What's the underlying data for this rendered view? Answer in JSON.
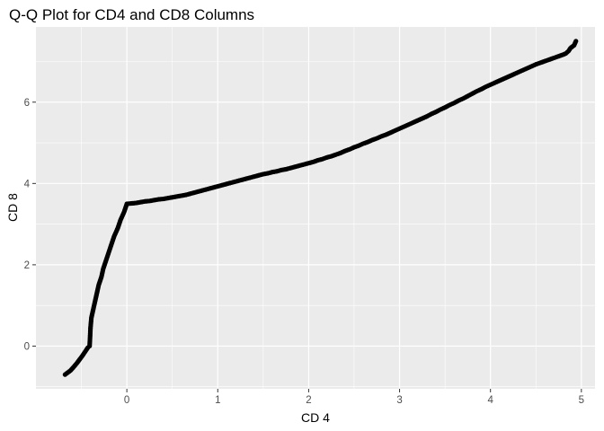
{
  "chart_data": {
    "type": "scatter",
    "title": "Q-Q Plot for CD4 and CD8 Columns",
    "xlabel": "CD 4",
    "ylabel": "CD 8",
    "xlim": [
      -1.0,
      5.15
    ],
    "ylim": [
      -1.05,
      7.85
    ],
    "xticks": [
      0,
      1,
      2,
      3,
      4,
      5
    ],
    "yticks": [
      0,
      2,
      4,
      6
    ],
    "grid": true,
    "background": "#ebebeb",
    "grid_color": "#ffffff",
    "point_color": "#000000",
    "points": [
      [
        -0.68,
        -0.7
      ],
      [
        -0.65,
        -0.65
      ],
      [
        -0.62,
        -0.6
      ],
      [
        -0.6,
        -0.55
      ],
      [
        -0.58,
        -0.5
      ],
      [
        -0.55,
        -0.42
      ],
      [
        -0.52,
        -0.33
      ],
      [
        -0.49,
        -0.24
      ],
      [
        -0.46,
        -0.14
      ],
      [
        -0.43,
        -0.04
      ],
      [
        -0.41,
        0.0
      ],
      [
        -0.405,
        0.2
      ],
      [
        -0.4,
        0.45
      ],
      [
        -0.39,
        0.7
      ],
      [
        -0.37,
        0.9
      ],
      [
        -0.35,
        1.1
      ],
      [
        -0.33,
        1.3
      ],
      [
        -0.31,
        1.5
      ],
      [
        -0.28,
        1.7
      ],
      [
        -0.26,
        1.9
      ],
      [
        -0.23,
        2.1
      ],
      [
        -0.2,
        2.3
      ],
      [
        -0.17,
        2.5
      ],
      [
        -0.14,
        2.7
      ],
      [
        -0.1,
        2.9
      ],
      [
        -0.07,
        3.1
      ],
      [
        -0.03,
        3.3
      ],
      [
        0.0,
        3.5
      ],
      [
        0.05,
        3.51
      ],
      [
        0.1,
        3.52
      ],
      [
        0.15,
        3.54
      ],
      [
        0.2,
        3.56
      ],
      [
        0.25,
        3.57
      ],
      [
        0.3,
        3.59
      ],
      [
        0.35,
        3.61
      ],
      [
        0.4,
        3.62
      ],
      [
        0.45,
        3.64
      ],
      [
        0.5,
        3.66
      ],
      [
        0.55,
        3.68
      ],
      [
        0.6,
        3.7
      ],
      [
        0.65,
        3.72
      ],
      [
        0.7,
        3.75
      ],
      [
        0.75,
        3.78
      ],
      [
        0.8,
        3.81
      ],
      [
        0.85,
        3.84
      ],
      [
        0.9,
        3.87
      ],
      [
        0.95,
        3.9
      ],
      [
        1.0,
        3.93
      ],
      [
        1.05,
        3.96
      ],
      [
        1.1,
        3.99
      ],
      [
        1.15,
        4.02
      ],
      [
        1.2,
        4.05
      ],
      [
        1.25,
        4.08
      ],
      [
        1.3,
        4.11
      ],
      [
        1.35,
        4.14
      ],
      [
        1.4,
        4.17
      ],
      [
        1.45,
        4.2
      ],
      [
        1.5,
        4.23
      ],
      [
        1.55,
        4.25
      ],
      [
        1.6,
        4.28
      ],
      [
        1.65,
        4.3
      ],
      [
        1.7,
        4.33
      ],
      [
        1.75,
        4.35
      ],
      [
        1.8,
        4.38
      ],
      [
        1.85,
        4.41
      ],
      [
        1.9,
        4.44
      ],
      [
        1.95,
        4.47
      ],
      [
        2.0,
        4.5
      ],
      [
        2.05,
        4.53
      ],
      [
        2.1,
        4.57
      ],
      [
        2.15,
        4.6
      ],
      [
        2.2,
        4.64
      ],
      [
        2.25,
        4.67
      ],
      [
        2.3,
        4.71
      ],
      [
        2.35,
        4.75
      ],
      [
        2.4,
        4.8
      ],
      [
        2.45,
        4.84
      ],
      [
        2.5,
        4.89
      ],
      [
        2.55,
        4.93
      ],
      [
        2.6,
        4.98
      ],
      [
        2.65,
        5.02
      ],
      [
        2.7,
        5.07
      ],
      [
        2.75,
        5.11
      ],
      [
        2.8,
        5.16
      ],
      [
        2.85,
        5.2
      ],
      [
        2.9,
        5.25
      ],
      [
        2.95,
        5.3
      ],
      [
        3.0,
        5.35
      ],
      [
        3.05,
        5.4
      ],
      [
        3.1,
        5.45
      ],
      [
        3.15,
        5.5
      ],
      [
        3.2,
        5.55
      ],
      [
        3.25,
        5.6
      ],
      [
        3.3,
        5.65
      ],
      [
        3.35,
        5.71
      ],
      [
        3.4,
        5.76
      ],
      [
        3.45,
        5.82
      ],
      [
        3.5,
        5.87
      ],
      [
        3.55,
        5.93
      ],
      [
        3.6,
        5.98
      ],
      [
        3.65,
        6.04
      ],
      [
        3.7,
        6.09
      ],
      [
        3.75,
        6.15
      ],
      [
        3.8,
        6.21
      ],
      [
        3.85,
        6.27
      ],
      [
        3.9,
        6.32
      ],
      [
        3.95,
        6.38
      ],
      [
        4.0,
        6.43
      ],
      [
        4.05,
        6.48
      ],
      [
        4.1,
        6.53
      ],
      [
        4.15,
        6.58
      ],
      [
        4.2,
        6.63
      ],
      [
        4.25,
        6.68
      ],
      [
        4.3,
        6.73
      ],
      [
        4.35,
        6.78
      ],
      [
        4.4,
        6.83
      ],
      [
        4.45,
        6.88
      ],
      [
        4.5,
        6.93
      ],
      [
        4.55,
        6.97
      ],
      [
        4.6,
        7.01
      ],
      [
        4.65,
        7.05
      ],
      [
        4.7,
        7.09
      ],
      [
        4.75,
        7.13
      ],
      [
        4.8,
        7.17
      ],
      [
        4.83,
        7.2
      ],
      [
        4.86,
        7.26
      ],
      [
        4.88,
        7.33
      ],
      [
        4.92,
        7.4
      ],
      [
        4.94,
        7.5
      ]
    ]
  }
}
